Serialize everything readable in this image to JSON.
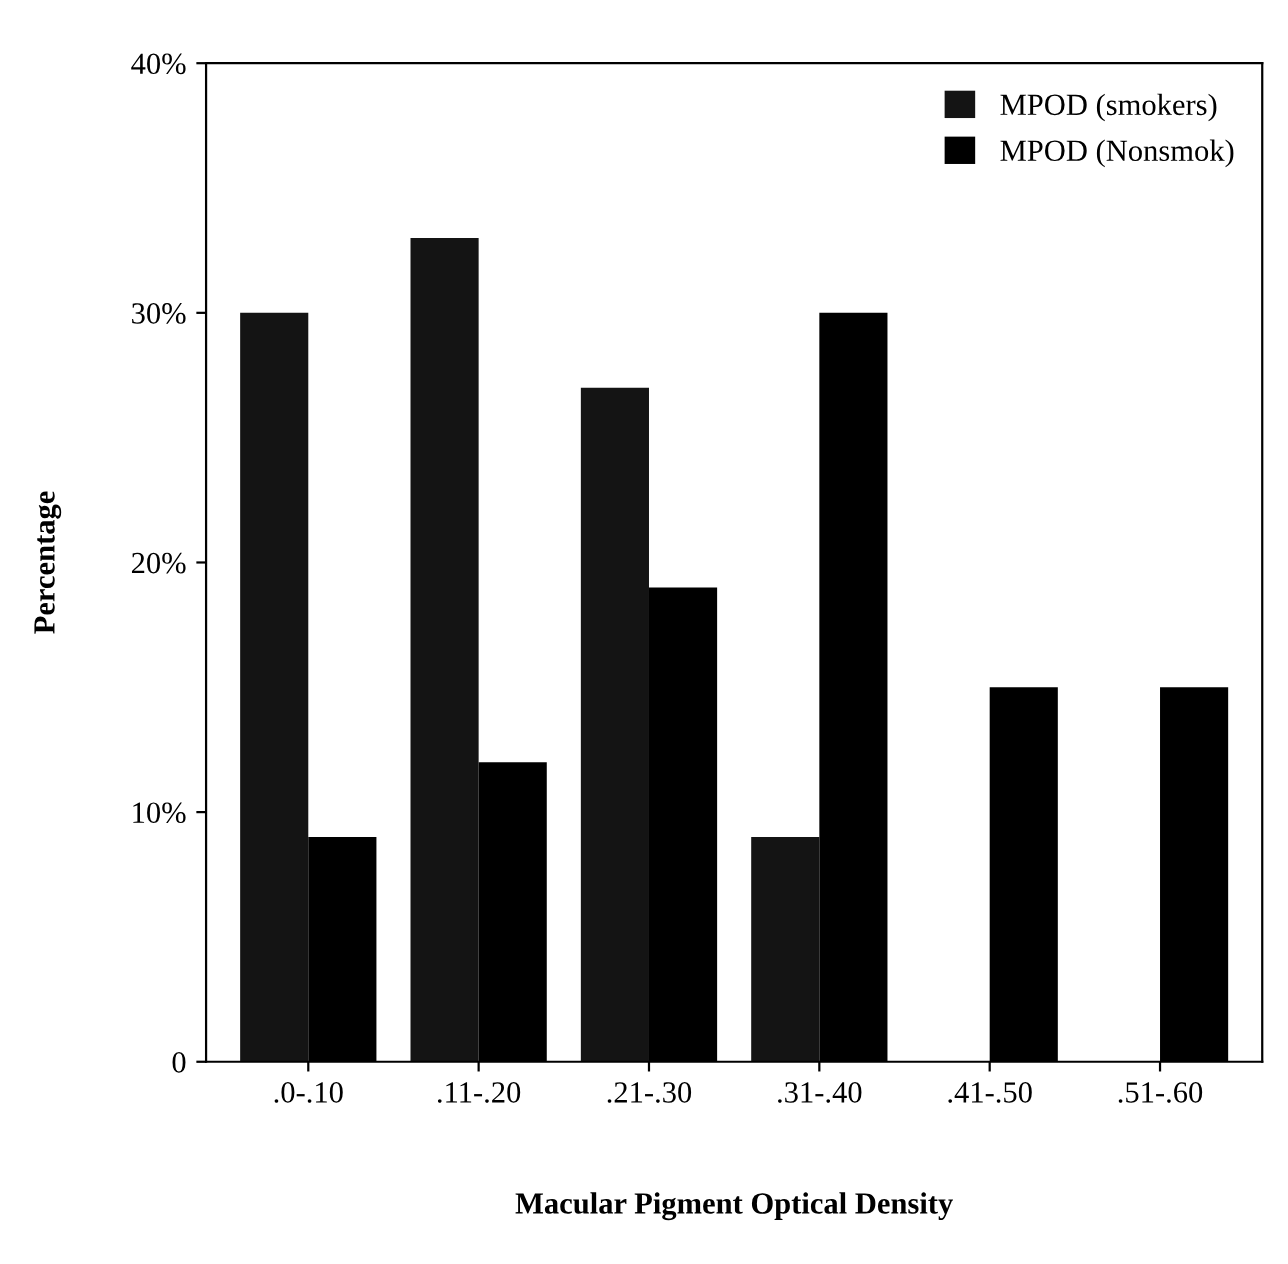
{
  "chart_data": {
    "type": "bar",
    "xlabel": "Macular Pigment Optical Density",
    "ylabel": "Percentage",
    "categories": [
      ".0-.10",
      ".11-.20",
      ".21-.30",
      ".31-.40",
      ".41-.50",
      ".51-.60"
    ],
    "series": [
      {
        "name": "MPOD (smokers)",
        "color": "#141414",
        "values": [
          30,
          33,
          27,
          9,
          0,
          0
        ]
      },
      {
        "name": "MPOD (Nonsmok)",
        "color": "#000000",
        "values": [
          9,
          12,
          19,
          30,
          15,
          15
        ]
      }
    ],
    "ylim": [
      0,
      40
    ],
    "yticks": [
      0,
      {
        "value": 10,
        "label": "10%"
      },
      {
        "value": 20,
        "label": "20%"
      },
      {
        "value": 30,
        "label": "30%"
      },
      {
        "value": 40,
        "label": "40%"
      }
    ],
    "legend": "top right",
    "grid": false
  }
}
